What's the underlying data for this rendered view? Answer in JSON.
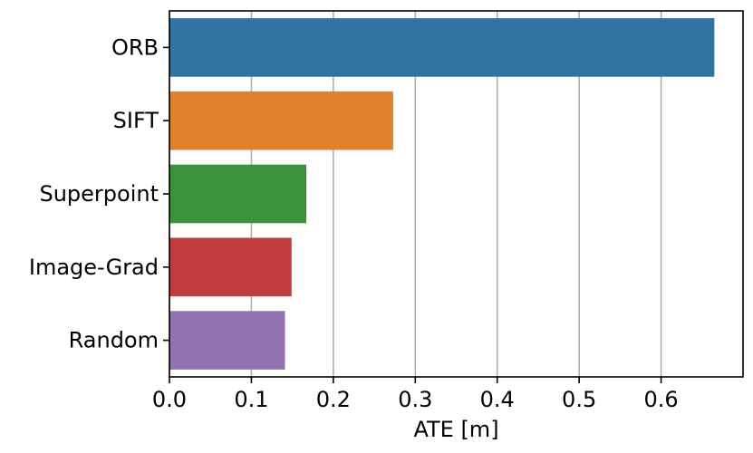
{
  "chart_data": {
    "type": "bar",
    "orientation": "horizontal",
    "categories": [
      "ORB",
      "SIFT",
      "Superpoint",
      "Image-Grad",
      "Random"
    ],
    "values": [
      0.665,
      0.273,
      0.167,
      0.149,
      0.141
    ],
    "colors": [
      "#3274a1",
      "#e1812c",
      "#3a923a",
      "#c03d3e",
      "#9372b2"
    ],
    "xlabel": "ATE [m]",
    "ylabel": "",
    "title": "",
    "xlim": [
      0.0,
      0.7
    ],
    "xticks": [
      "0.0",
      "0.1",
      "0.2",
      "0.3",
      "0.4",
      "0.5",
      "0.6"
    ],
    "grid": "vertical",
    "grid_color": "#b0b0b0"
  }
}
